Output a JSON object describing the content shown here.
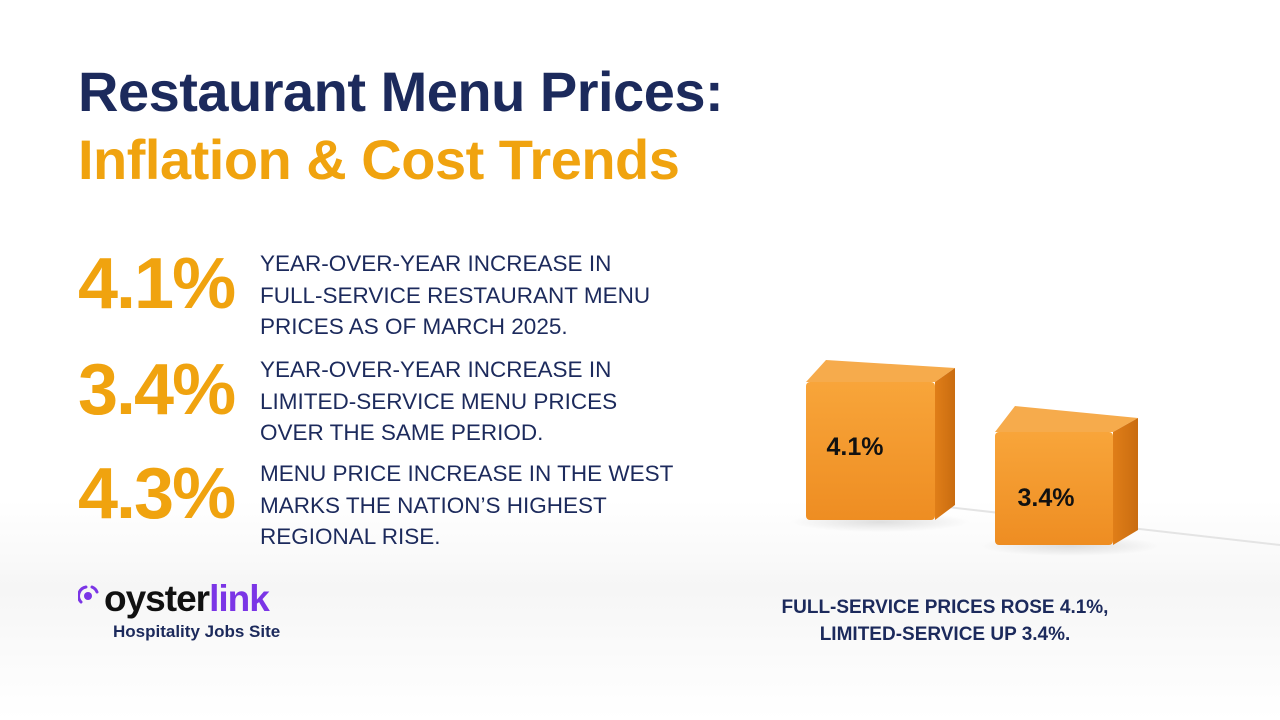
{
  "title": {
    "line1": "Restaurant Menu Prices:",
    "line2": "Inflation & Cost Trends"
  },
  "stats": [
    {
      "value": "4.1%",
      "text": "Year-over-year increase in full-service restaurant menu prices as of March 2025."
    },
    {
      "value": "3.4%",
      "text": "Year-over-year increase in limited-service menu prices over the same period."
    },
    {
      "value": "4.3%",
      "text": "Menu price increase in the West marks the nation’s highest regional rise."
    }
  ],
  "cubes": [
    {
      "label": "4.1%",
      "value": 4.1
    },
    {
      "label": "3.4%",
      "value": 3.4
    }
  ],
  "caption": {
    "line1": "FULL-SERVICE PRICES ROSE 4.1%,",
    "line2": "LIMITED-SERVICE UP 3.4%."
  },
  "logo": {
    "brand_part1": "oyster",
    "brand_part2": "link",
    "tagline": "Hospitality Jobs Site"
  },
  "colors": {
    "navy": "#1c2a5c",
    "orange": "#f0a30f",
    "cube": "#f39a2e",
    "brand_purple": "#7b35e6"
  }
}
